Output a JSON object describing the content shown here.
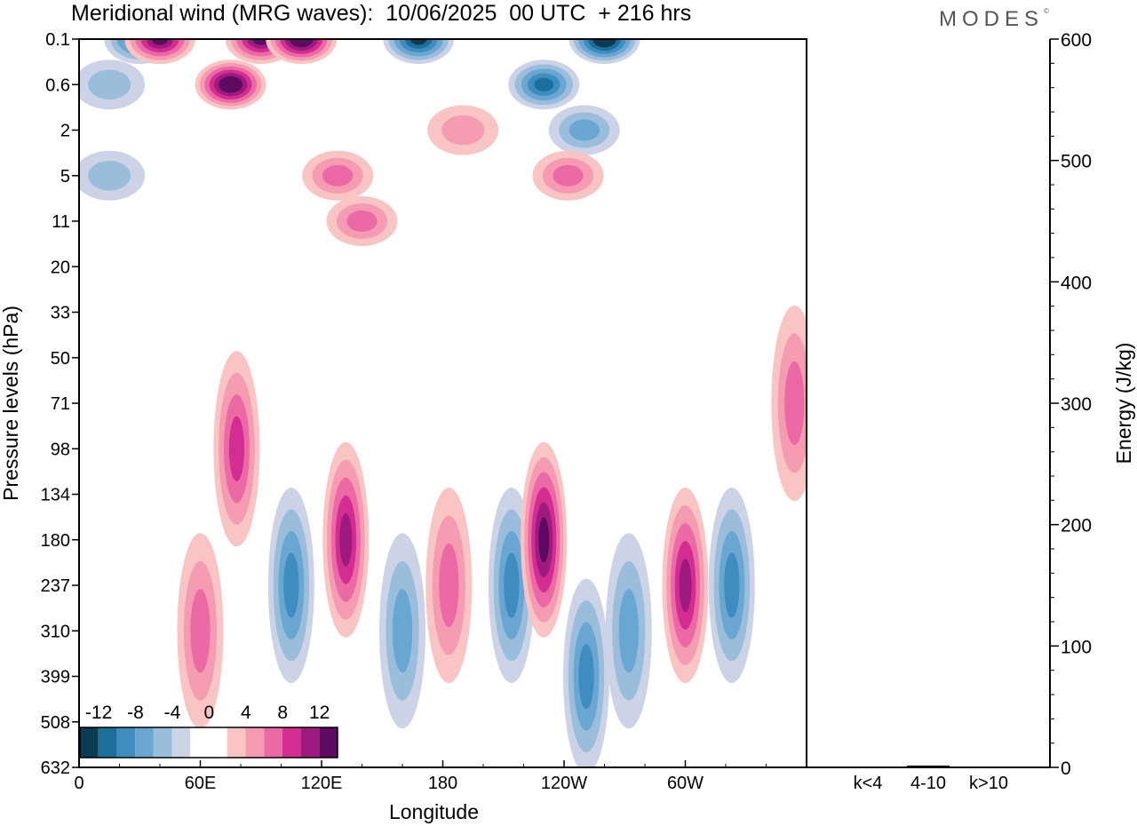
{
  "title": "Meridional wind (MRG waves):  10/06/2025  00 UTC  + 216 hrs",
  "logo": "MODES",
  "chart_data": [
    {
      "type": "heatmap",
      "title": "Meridional wind (MRG waves):  10/06/2025  00 UTC  + 216 hrs",
      "xlabel": "Longitude",
      "ylabel": "Pressure levels (hPa)",
      "x_ticks": [
        "0",
        "60E",
        "120E",
        "180",
        "120W",
        "60W"
      ],
      "x_tick_degrees": [
        0,
        60,
        120,
        180,
        240,
        300
      ],
      "xlim": [
        0,
        360
      ],
      "y_ticks": [
        "0.1",
        "0.6",
        "2",
        "5",
        "11",
        "20",
        "33",
        "50",
        "71",
        "98",
        "134",
        "180",
        "237",
        "310",
        "399",
        "508",
        "632"
      ],
      "y_axis_inverted": true,
      "colorbar": {
        "labels": [
          "-12",
          "-8",
          "-4",
          "0",
          "4",
          "8",
          "12"
        ],
        "levels": [
          -14,
          -12,
          -10,
          -8,
          -6,
          -4,
          -2,
          2,
          4,
          6,
          8,
          10,
          12,
          14
        ],
        "colors": [
          "#0b3a52",
          "#1a6f9c",
          "#3f8dc0",
          "#6aa6d2",
          "#9bbddc",
          "#cdd3e6",
          "#ffffff",
          "#ffffff",
          "#f9c4c4",
          "#f59bb2",
          "#eb6aa6",
          "#d42d91",
          "#9e1a7e",
          "#5c0a62"
        ]
      },
      "features": [
        {
          "lon": 30,
          "level": "0.1",
          "value": -10
        },
        {
          "lon": 40,
          "level": "0.1",
          "value": 12
        },
        {
          "lon": 75,
          "level": "0.6",
          "value": 14
        },
        {
          "lon": 90,
          "level": "0.1",
          "value": 12
        },
        {
          "lon": 15,
          "level": "0.6",
          "value": -4
        },
        {
          "lon": 15,
          "level": "5",
          "value": -4
        },
        {
          "lon": 110,
          "level": "0.1",
          "value": 13
        },
        {
          "lon": 128,
          "level": "5",
          "value": 6
        },
        {
          "lon": 140,
          "level": "11",
          "value": 5
        },
        {
          "lon": 168,
          "level": "0.1",
          "value": -12
        },
        {
          "lon": 190,
          "level": "2",
          "value": 4
        },
        {
          "lon": 230,
          "level": "0.6",
          "value": -10
        },
        {
          "lon": 260,
          "level": "0.1",
          "value": -14
        },
        {
          "lon": 250,
          "level": "2",
          "value": -6
        },
        {
          "lon": 242,
          "level": "5",
          "value": 6
        },
        {
          "lon": 60,
          "level": "310",
          "value": 6
        },
        {
          "lon": 78,
          "level": "98",
          "value": 8
        },
        {
          "lon": 105,
          "level": "237",
          "value": -8
        },
        {
          "lon": 132,
          "level": "180",
          "value": 9
        },
        {
          "lon": 160,
          "level": "310",
          "value": -6
        },
        {
          "lon": 183,
          "level": "237",
          "value": 6
        },
        {
          "lon": 214,
          "level": "237",
          "value": -8
        },
        {
          "lon": 230,
          "level": "180",
          "value": 11
        },
        {
          "lon": 251,
          "level": "399",
          "value": -8
        },
        {
          "lon": 272,
          "level": "310",
          "value": -5
        },
        {
          "lon": 300,
          "level": "237",
          "value": 9
        },
        {
          "lon": 323,
          "level": "237",
          "value": -8
        },
        {
          "lon": 354,
          "level": "71",
          "value": 5
        }
      ]
    },
    {
      "type": "bar",
      "categories": [
        "k<4",
        "4-10",
        "k>10"
      ],
      "values": [
        0.5,
        1.5,
        0.5
      ],
      "ylabel": "Energy (J/kg)",
      "ylim": [
        0,
        600
      ],
      "y_ticks": [
        "0",
        "100",
        "200",
        "300",
        "400",
        "500",
        "600"
      ]
    }
  ]
}
